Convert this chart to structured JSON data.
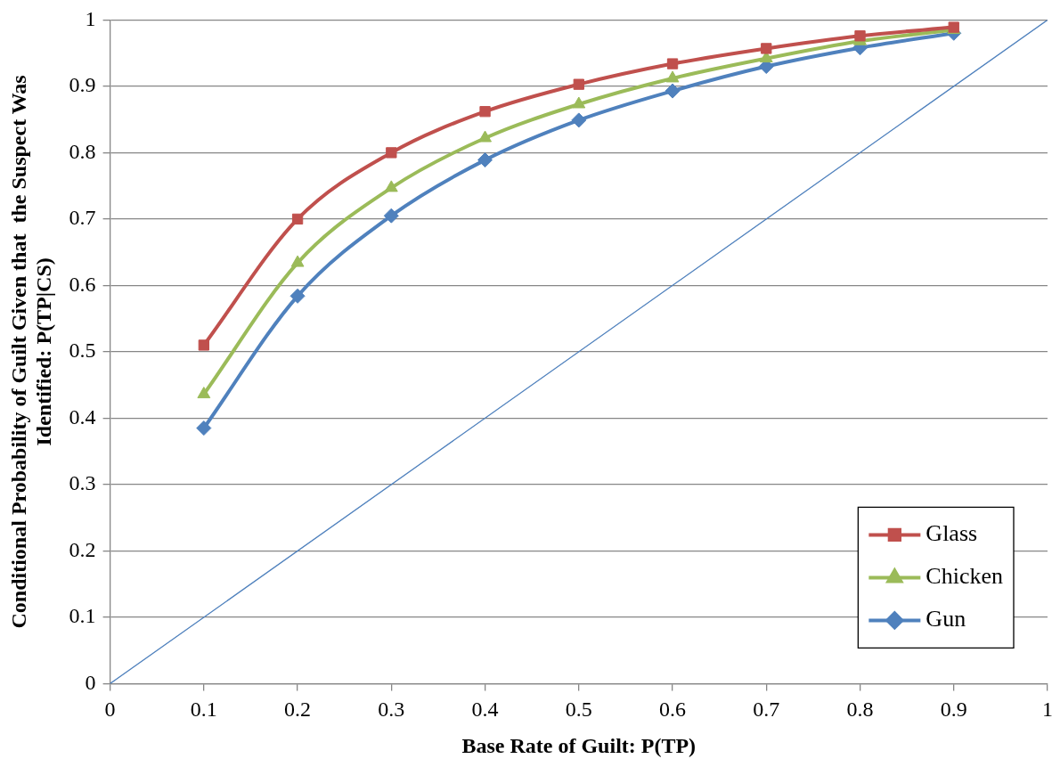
{
  "chart_data": {
    "type": "line",
    "xlabel": "Base Rate of Guilt: P(TP)",
    "ylabel": "Conditional Probability of Guilt Given that  the Suspect Was Identified: P(TP|CS)",
    "x": [
      0.1,
      0.2,
      0.3,
      0.4,
      0.5,
      0.6,
      0.7,
      0.8,
      0.9
    ],
    "series": [
      {
        "name": "Glass",
        "color": "#c0504d",
        "marker": "square",
        "values": [
          0.51,
          0.7,
          0.8,
          0.862,
          0.903,
          0.934,
          0.957,
          0.976,
          0.989
        ]
      },
      {
        "name": "Chicken",
        "color": "#9bbb59",
        "marker": "triangle",
        "values": [
          0.436,
          0.634,
          0.747,
          0.822,
          0.873,
          0.912,
          0.942,
          0.968,
          0.985
        ]
      },
      {
        "name": "Gun",
        "color": "#4f81bd",
        "marker": "diamond",
        "values": [
          0.385,
          0.584,
          0.705,
          0.789,
          0.849,
          0.893,
          0.93,
          0.958,
          0.98
        ]
      },
      {
        "type": "line",
        "color": "#4f81bd",
        "marker": "none",
        "x": [
          0,
          1
        ],
        "values": [
          0,
          1
        ]
      }
    ],
    "xlim": [
      0,
      1
    ],
    "xticks": [
      0,
      0.1,
      0.2,
      0.3,
      0.4,
      0.5,
      0.6,
      0.7,
      0.8,
      0.9,
      1
    ],
    "ylim": [
      0,
      1
    ],
    "yticks": [
      0,
      0.1,
      0.2,
      0.3,
      0.4,
      0.5,
      0.6,
      0.7,
      0.8,
      0.9,
      1
    ],
    "grid": "y",
    "legend": "bottom right"
  }
}
